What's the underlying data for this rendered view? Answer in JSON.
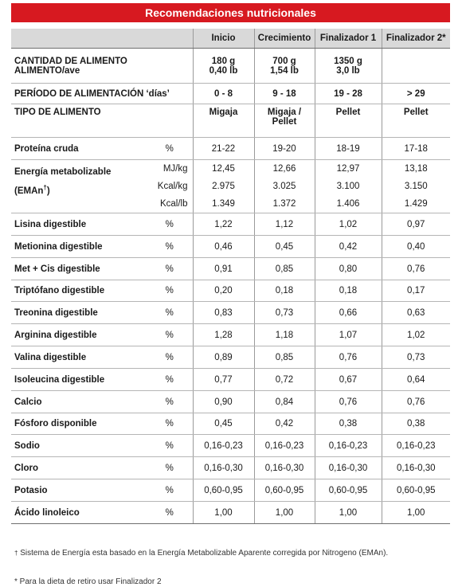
{
  "title": "Recomendaciones nutricionales",
  "columns": [
    "Inicio",
    "Crecimiento",
    "Finalizador 1",
    "Finalizador  2*"
  ],
  "cantidad": {
    "label_line1": "CANTIDAD DE ALIMENTO",
    "label_line2": "ALIMENTO/ave",
    "values": [
      [
        "180 g",
        "0,40 lb"
      ],
      [
        "700 g",
        "1,54 lb"
      ],
      [
        "1350 g",
        "3,0 lb"
      ],
      [
        "",
        ""
      ]
    ]
  },
  "periodo": {
    "label": "PERÍODO DE ALIMENTACIÓN ‘días’",
    "values": [
      "0 - 8",
      "9 - 18",
      "19 - 28",
      "> 29"
    ]
  },
  "tipo": {
    "label": "TIPO DE ALIMENTO",
    "values": [
      [
        "Migaja",
        ""
      ],
      [
        "Migaja /",
        "Pellet"
      ],
      [
        "Pellet",
        ""
      ],
      [
        "Pellet",
        ""
      ]
    ]
  },
  "proteina": {
    "label": "Proteína cruda",
    "unit": "%",
    "values": [
      "21-22",
      "19-20",
      "18-19",
      "17-18"
    ]
  },
  "energia": {
    "label_line1": "Energía metabolizable",
    "label_line2": "(EMAn",
    "label_sup": "†",
    "label_close": ")",
    "rows": [
      {
        "unit": "MJ/kg",
        "values": [
          "12,45",
          "12,66",
          "12,97",
          "13,18"
        ]
      },
      {
        "unit": "Kcal/kg",
        "values": [
          "2.975",
          "3.025",
          "3.100",
          "3.150"
        ]
      },
      {
        "unit": "Kcal/lb",
        "values": [
          "1.349",
          "1.372",
          "1.406",
          "1.429"
        ]
      }
    ]
  },
  "nutrients": [
    {
      "label": "Lisina digestible",
      "unit": "%",
      "values": [
        "1,22",
        "1,12",
        "1,02",
        "0,97"
      ]
    },
    {
      "label": "Metionina digestible",
      "unit": "%",
      "values": [
        "0,46",
        "0,45",
        "0,42",
        "0,40"
      ]
    },
    {
      "label": "Met + Cis digestible",
      "unit": "%",
      "values": [
        "0,91",
        "0,85",
        "0,80",
        "0,76"
      ]
    },
    {
      "label": "Triptófano digestible",
      "unit": "%",
      "values": [
        "0,20",
        "0,18",
        "0,18",
        "0,17"
      ]
    },
    {
      "label": "Treonina digestible",
      "unit": "%",
      "values": [
        "0,83",
        "0,73",
        "0,66",
        "0,63"
      ]
    },
    {
      "label": "Arginina digestible",
      "unit": "%",
      "values": [
        "1,28",
        "1,18",
        "1,07",
        "1,02"
      ]
    },
    {
      "label": "Valina digestible",
      "unit": "%",
      "values": [
        "0,89",
        "0,85",
        "0,76",
        "0,73"
      ]
    },
    {
      "label": "Isoleucina digestible",
      "unit": "%",
      "values": [
        "0,77",
        "0,72",
        "0,67",
        "0,64"
      ]
    },
    {
      "label": "Calcio",
      "unit": "%",
      "values": [
        "0,90",
        "0,84",
        "0,76",
        "0,76"
      ]
    },
    {
      "label": "Fósforo disponible",
      "unit": "%",
      "values": [
        "0,45",
        "0,42",
        "0,38",
        "0,38"
      ]
    },
    {
      "label": "Sodio",
      "unit": "%",
      "values": [
        "0,16-0,23",
        "0,16-0,23",
        "0,16-0,23",
        "0,16-0,23"
      ]
    },
    {
      "label": "Cloro",
      "unit": "%",
      "values": [
        "0,16-0,30",
        "0,16-0,30",
        "0,16-0,30",
        "0,16-0,30"
      ]
    },
    {
      "label": "Potasio",
      "unit": "%",
      "values": [
        "0,60-0,95",
        "0,60-0,95",
        "0,60-0,95",
        "0,60-0,95"
      ]
    },
    {
      "label": "Ácido linoleico",
      "unit": "%",
      "values": [
        "1,00",
        "1,00",
        "1,00",
        "1,00"
      ]
    }
  ],
  "footnotes": {
    "dagger_mark": "†",
    "dagger_text": "Sistema de Energía esta basado en la Energía Metabolizable Aparente corregida por Nitrogeno (EMAn).",
    "star_text": "* Para la dieta de retiro usar Finalizador 2"
  },
  "colors": {
    "banner": "#d71920",
    "header_bg": "#d9d9d9"
  }
}
